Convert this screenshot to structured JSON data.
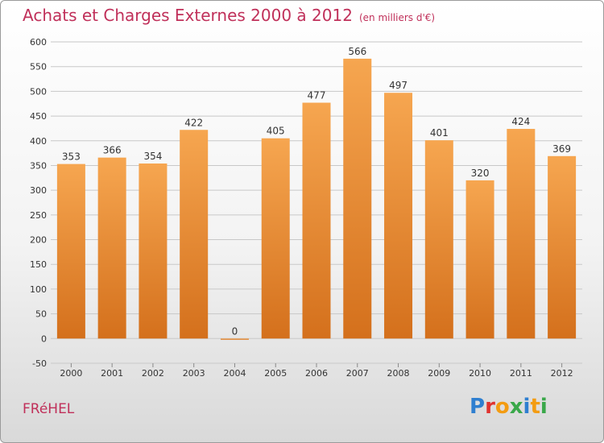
{
  "header": {
    "title": "Achats et Charges Externes 2000 à 2012",
    "subtitle": "(en milliers d'€)"
  },
  "footer": {
    "commune": "FRéHEL",
    "logo_letters": [
      "P",
      "r",
      "o",
      "x",
      "i",
      "t",
      "i"
    ],
    "logo_colors": [
      "#2f7fd0",
      "#e0332f",
      "#f39c12",
      "#3aa84a",
      "#2f7fd0",
      "#f39c12",
      "#3aa84a"
    ]
  },
  "chart_data": {
    "type": "bar",
    "title": "Achats et Charges Externes 2000 à 2012",
    "subtitle": "(en milliers d'€)",
    "categories": [
      "2000",
      "2001",
      "2002",
      "2003",
      "2004",
      "2005",
      "2006",
      "2007",
      "2008",
      "2009",
      "2010",
      "2011",
      "2012"
    ],
    "values": [
      353,
      366,
      354,
      422,
      0,
      405,
      477,
      566,
      497,
      401,
      320,
      424,
      369
    ],
    "yticks": [
      -50,
      0,
      50,
      100,
      150,
      200,
      250,
      300,
      350,
      400,
      450,
      500,
      550,
      600
    ],
    "ylim": [
      -50,
      600
    ],
    "grid": true,
    "bar_color_top": "#f6a650",
    "bar_color_bottom": "#d4701c"
  }
}
